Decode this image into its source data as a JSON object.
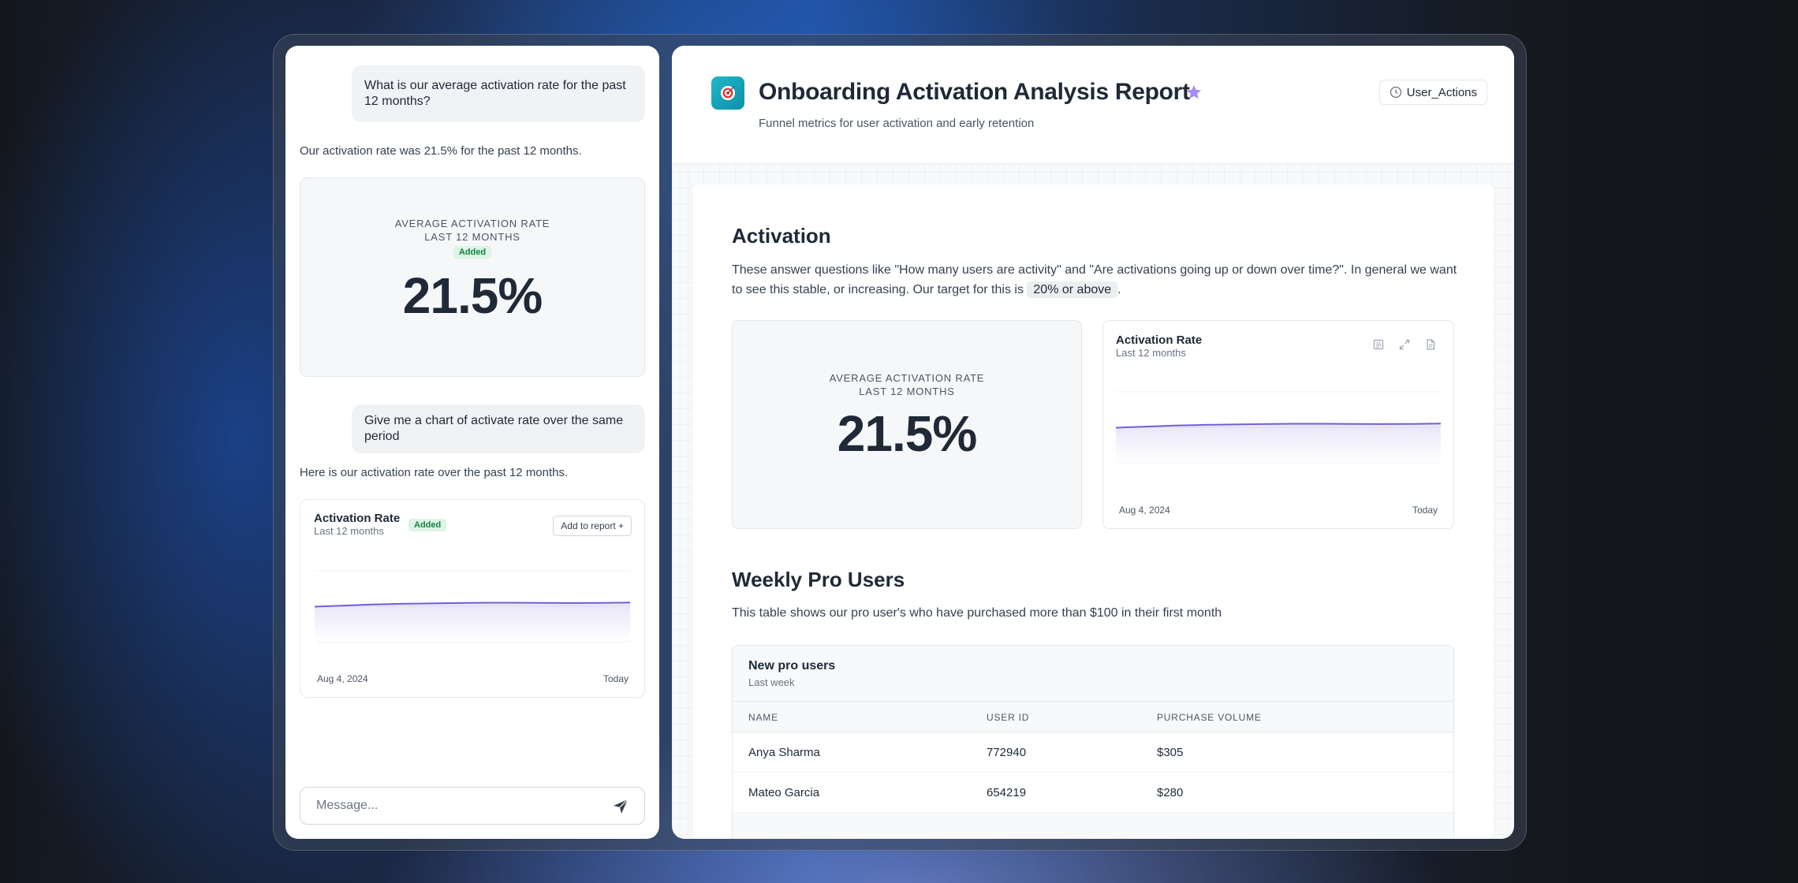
{
  "chat": {
    "messages": [
      {
        "role": "user",
        "text": "What is our average activation rate for the past 12 months?"
      },
      {
        "role": "assistant",
        "text": "Our activation rate was 21.5% for the past 12 months."
      },
      {
        "role": "user",
        "text": "Give me a chart of activate rate over the same period"
      },
      {
        "role": "assistant",
        "text": "Here is our activation rate over the past 12 months."
      }
    ],
    "metric_card": {
      "label_line1": "AVERAGE ACTIVATION RATE",
      "label_line2": "LAST 12 MONTHS",
      "badge": "Added",
      "value": "21.5%"
    },
    "chart_card": {
      "title": "Activation Rate",
      "subtitle": "Last 12 months",
      "badge": "Added",
      "add_button": "Add to report +",
      "x_start": "Aug 4, 2024",
      "x_end": "Today"
    },
    "input": {
      "placeholder": "Message...",
      "send_icon": "paper-plane-icon"
    }
  },
  "report": {
    "logo_icon": "target-emoji-icon",
    "title": "Onboarding Activation Analysis Report",
    "subtitle": "Funnel metrics for user activation and early retention",
    "user_actions_label": "User_Actions",
    "activation_section": {
      "heading": "Activation",
      "paragraph_before": "These answer questions like \"How many users are activity\" and \"Are activations going up or down over time?\". In general we want to see this stable, or increasing. Our target for this is",
      "highlight": "20% or above",
      "paragraph_after": ".",
      "metric": {
        "label_line1": "AVERAGE ACTIVATION RATE",
        "label_line2": "LAST 12 MONTHS",
        "value": "21.5%"
      },
      "chart": {
        "title": "Activation Rate",
        "subtitle": "Last 12 months",
        "x_start": "Aug 4, 2024",
        "x_end": "Today",
        "icons": [
          "notes-icon",
          "expand-icon",
          "document-icon"
        ]
      }
    },
    "weekly_section": {
      "heading": "Weekly Pro Users",
      "paragraph": "This table shows our pro user's who have purchased more than $100 in their first month",
      "table": {
        "title": "New pro users",
        "subtitle": "Last week",
        "columns": [
          "NAME",
          "USER ID",
          "PURCHASE VOLUME"
        ],
        "rows": [
          [
            "Anya Sharma",
            "772940",
            "$305"
          ],
          [
            "Mateo Garcia",
            "654219",
            "$280"
          ]
        ]
      }
    }
  },
  "colors": {
    "accent_line": "#6f5fd8",
    "star": "#a78bfa",
    "badge_bg": "#dcf5e5",
    "badge_text": "#15803d",
    "logo": "#1fb8c9"
  },
  "chart_data": [
    {
      "type": "line",
      "title": "Activation Rate",
      "subtitle": "Last 12 months",
      "x": [
        "Aug 4, 2024",
        "",
        "",
        "",
        "",
        "",
        "",
        "",
        "",
        "",
        "",
        "Today"
      ],
      "series": [
        {
          "values": [
            19.8,
            20.4,
            21.0,
            21.4,
            21.6,
            21.8,
            22.0,
            22.0,
            21.9,
            21.8,
            21.9,
            22.1
          ]
        }
      ],
      "ylim": [
        0,
        40
      ],
      "grid": true
    }
  ]
}
